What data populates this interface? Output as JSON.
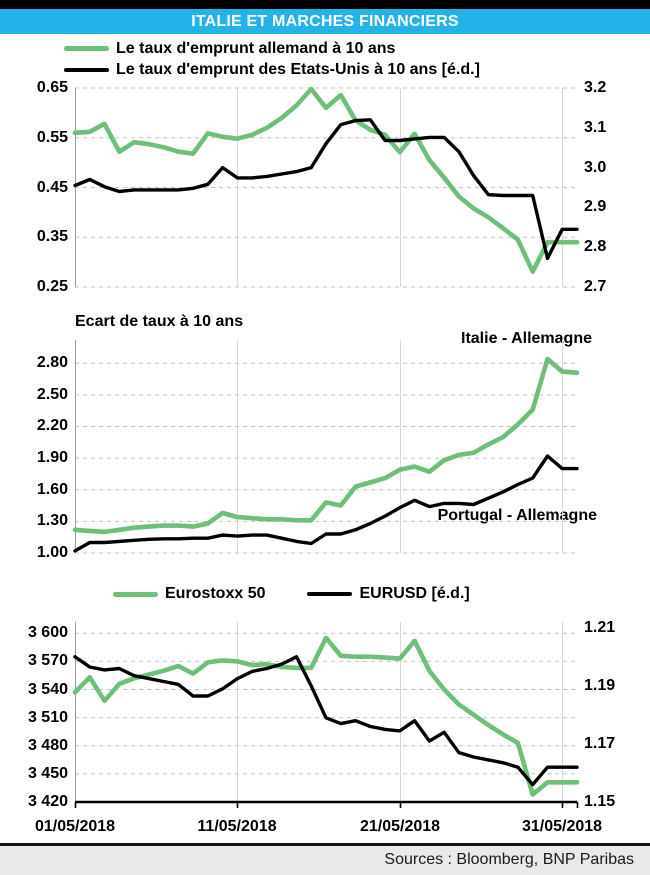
{
  "header": {
    "title": "ITALIE ET MARCHES FINANCIERS"
  },
  "colors": {
    "green": "#6FBE79",
    "black": "#000000",
    "accent": "#24B2E8"
  },
  "x_dates": [
    "01/05/2018",
    "11/05/2018",
    "21/05/2018",
    "31/05/2018"
  ],
  "footer": {
    "sources": "Sources : Bloomberg, BNP Paribas"
  },
  "chart_data": [
    {
      "type": "line",
      "name": "taux-emprunt-10-ans",
      "legend": [
        {
          "label": "Le taux d'emprunt allemand à 10 ans",
          "color": "green"
        },
        {
          "label": "Le taux d'emprunt des Etats-Unis à 10 ans [é.d.]",
          "color": "black"
        }
      ],
      "left_axis": {
        "min": 0.25,
        "max": 0.65,
        "ticks": [
          "0.65",
          "0.55",
          "0.45",
          "0.35",
          "0.25"
        ]
      },
      "right_axis": {
        "min": 2.7,
        "max": 3.2,
        "ticks": [
          "3.2",
          "3.1",
          "3.0",
          "2.9",
          "2.8",
          "2.7"
        ]
      },
      "series": [
        {
          "name": "taux-allemand",
          "color": "green",
          "axis": "left",
          "values": [
            0.56,
            0.562,
            0.578,
            0.522,
            0.541,
            0.537,
            0.531,
            0.522,
            0.518,
            0.559,
            0.552,
            0.548,
            0.556,
            0.57,
            0.59,
            0.615,
            0.648,
            0.61,
            0.636,
            0.585,
            0.566,
            0.556,
            0.521,
            0.558,
            0.505,
            0.47,
            0.432,
            0.408,
            0.39,
            0.368,
            0.345,
            0.281,
            0.34,
            0.34,
            0.34
          ]
        },
        {
          "name": "taux-etats-unis",
          "color": "black",
          "axis": "right",
          "values": [
            2.955,
            2.97,
            2.952,
            2.94,
            2.944,
            2.944,
            2.944,
            2.944,
            2.948,
            2.958,
            3.0,
            2.974,
            2.974,
            2.978,
            2.984,
            2.99,
            3.0,
            3.06,
            3.108,
            3.118,
            3.12,
            3.068,
            3.068,
            3.072,
            3.076,
            3.076,
            3.04,
            2.98,
            2.932,
            2.93,
            2.93,
            2.93,
            2.772,
            2.845,
            2.845
          ]
        }
      ]
    },
    {
      "type": "line",
      "name": "ecart-de-taux",
      "title": "Ecart de taux à 10 ans",
      "annotations": [
        {
          "text": "Italie - Allemagne"
        },
        {
          "text": "Portugal - Allemagne"
        }
      ],
      "left_axis": {
        "min": 1.0,
        "max": 3.02,
        "ticks": [
          "2.80",
          "2.50",
          "2.20",
          "1.90",
          "1.60",
          "1.30",
          "1.00"
        ]
      },
      "series": [
        {
          "name": "italie-allemagne",
          "color": "green",
          "axis": "left",
          "values": [
            1.22,
            1.21,
            1.2,
            1.22,
            1.24,
            1.25,
            1.26,
            1.26,
            1.25,
            1.28,
            1.38,
            1.34,
            1.33,
            1.32,
            1.32,
            1.31,
            1.31,
            1.48,
            1.45,
            1.63,
            1.67,
            1.71,
            1.79,
            1.82,
            1.77,
            1.88,
            1.93,
            1.95,
            2.03,
            2.1,
            2.22,
            2.36,
            2.84,
            2.72,
            2.71
          ]
        },
        {
          "name": "portugal-allemagne",
          "color": "black",
          "axis": "left",
          "values": [
            1.02,
            1.1,
            1.1,
            1.11,
            1.12,
            1.13,
            1.135,
            1.135,
            1.14,
            1.14,
            1.17,
            1.16,
            1.17,
            1.17,
            1.14,
            1.11,
            1.09,
            1.18,
            1.18,
            1.22,
            1.28,
            1.35,
            1.43,
            1.5,
            1.44,
            1.47,
            1.47,
            1.46,
            1.52,
            1.58,
            1.65,
            1.71,
            1.92,
            1.8,
            1.8
          ]
        }
      ]
    },
    {
      "type": "line",
      "name": "eurostoxx-eurusd",
      "legend": [
        {
          "label": "Eurostoxx 50",
          "color": "green"
        },
        {
          "label": "EURUSD [é.d.]",
          "color": "black"
        }
      ],
      "left_axis": {
        "min": 3420,
        "max": 3612,
        "ticks": [
          "3 600",
          "3 570",
          "3 540",
          "3 510",
          "3 480",
          "3 450",
          "3 420"
        ]
      },
      "right_axis": {
        "min": 1.15,
        "max": 1.212,
        "ticks": [
          "1.21",
          "1.19",
          "1.17",
          "1.15"
        ]
      },
      "x_tick_labels": [
        "01/05/2018",
        "11/05/2018",
        "21/05/2018",
        "31/05/2018"
      ],
      "series": [
        {
          "name": "eurostoxx-50",
          "color": "green",
          "axis": "left",
          "values": [
            3537,
            3553,
            3528,
            3546,
            3552,
            3556,
            3560,
            3565,
            3557,
            3569,
            3571,
            3570,
            3566,
            3567,
            3564,
            3563,
            3563,
            3595,
            3576,
            3575,
            3575,
            3574,
            3573,
            3592,
            3560,
            3540,
            3524,
            3513,
            3502,
            3492,
            3483,
            3428,
            3441,
            3441,
            3441
          ]
        },
        {
          "name": "eurusd",
          "color": "black",
          "axis": "right",
          "values": [
            1.2,
            1.1965,
            1.1955,
            1.196,
            1.1935,
            1.1925,
            1.1915,
            1.1905,
            1.1865,
            1.1865,
            1.189,
            1.1925,
            1.195,
            1.196,
            1.1975,
            1.2,
            1.19,
            1.179,
            1.177,
            1.178,
            1.176,
            1.175,
            1.1745,
            1.178,
            1.171,
            1.174,
            1.167,
            1.1655,
            1.1645,
            1.1635,
            1.162,
            1.156,
            1.162,
            1.162,
            1.162
          ]
        }
      ]
    }
  ]
}
